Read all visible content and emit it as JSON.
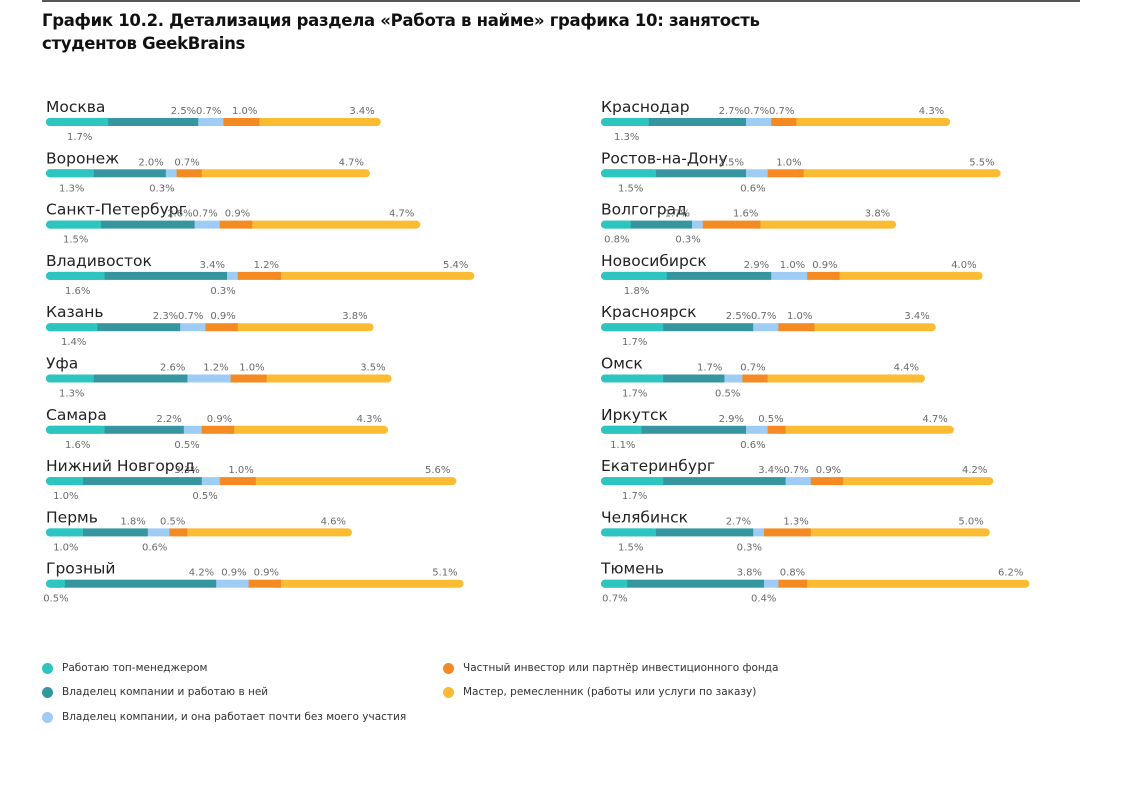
{
  "title": "График 10.2. Детализация раздела «Работа в найме» графика 10: занятость студентов GeekBrains",
  "colors": {
    "top_manager": "#2ec4c0",
    "owner_working": "#35969f",
    "owner_passive": "#9fccf5",
    "investor": "#f58a23",
    "master": "#fbbb33"
  },
  "chart_data": {
    "type": "bar",
    "stacked": true,
    "orientation": "horizontal",
    "unit": "%",
    "series": [
      {
        "name": "Работаю топ-менеджером",
        "key": "top_manager"
      },
      {
        "name": "Владелец компании и работаю в ней",
        "key": "owner_working"
      },
      {
        "name": "Владелец компании, и она работает почти без моего участия",
        "key": "owner_passive"
      },
      {
        "name": "Частный инвестор или партнёр инвестиционного фонда",
        "key": "investor"
      },
      {
        "name": "Мастер, ремесленник (работы или услуги по заказу)",
        "key": "master"
      }
    ],
    "panels": [
      {
        "categories": [
          {
            "city": "Москва",
            "values": [
              1.7,
              2.5,
              0.7,
              1.0,
              3.4
            ]
          },
          {
            "city": "Воронеж",
            "values": [
              1.3,
              2.0,
              0.3,
              0.7,
              4.7
            ]
          },
          {
            "city": "Санкт-Петербург",
            "values": [
              1.5,
              2.6,
              0.7,
              0.9,
              4.7
            ]
          },
          {
            "city": "Владивосток",
            "values": [
              1.6,
              3.4,
              0.3,
              1.2,
              5.4
            ]
          },
          {
            "city": "Казань",
            "values": [
              1.4,
              2.3,
              0.7,
              0.9,
              3.8
            ]
          },
          {
            "city": "Уфа",
            "values": [
              1.3,
              2.6,
              1.2,
              1.0,
              3.5
            ]
          },
          {
            "city": "Самара",
            "values": [
              1.6,
              2.2,
              0.5,
              0.9,
              4.3
            ]
          },
          {
            "city": "Нижний Новгород",
            "values": [
              1.0,
              3.3,
              0.5,
              1.0,
              5.6
            ]
          },
          {
            "city": "Пермь",
            "values": [
              1.0,
              1.8,
              0.6,
              0.5,
              4.6
            ]
          },
          {
            "city": "Грозный",
            "values": [
              0.5,
              4.2,
              0.9,
              0.9,
              5.1
            ]
          }
        ]
      },
      {
        "categories": [
          {
            "city": "Краснодар",
            "values": [
              1.3,
              2.7,
              0.7,
              0.7,
              4.3
            ]
          },
          {
            "city": "Ростов-на-Дону",
            "values": [
              1.5,
              2.5,
              0.6,
              1.0,
              5.5
            ]
          },
          {
            "city": "Волгоград",
            "values": [
              0.8,
              1.7,
              0.3,
              1.6,
              3.8
            ]
          },
          {
            "city": "Новосибирск",
            "values": [
              1.8,
              2.9,
              1.0,
              0.9,
              4.0
            ]
          },
          {
            "city": "Красноярск",
            "values": [
              1.7,
              2.5,
              0.7,
              1.0,
              3.4
            ]
          },
          {
            "city": "Омск",
            "values": [
              1.7,
              1.7,
              0.5,
              0.7,
              4.4
            ]
          },
          {
            "city": "Иркутск",
            "values": [
              1.1,
              2.9,
              0.6,
              0.5,
              4.7
            ]
          },
          {
            "city": "Екатеринбург",
            "values": [
              1.7,
              3.4,
              0.7,
              0.9,
              4.2
            ]
          },
          {
            "city": "Челябинск",
            "values": [
              1.5,
              2.7,
              0.3,
              1.3,
              5.0
            ]
          },
          {
            "city": "Тюмень",
            "values": [
              0.7,
              3.8,
              0.4,
              0.8,
              6.2
            ]
          }
        ]
      }
    ],
    "legend_position": "bottom"
  }
}
